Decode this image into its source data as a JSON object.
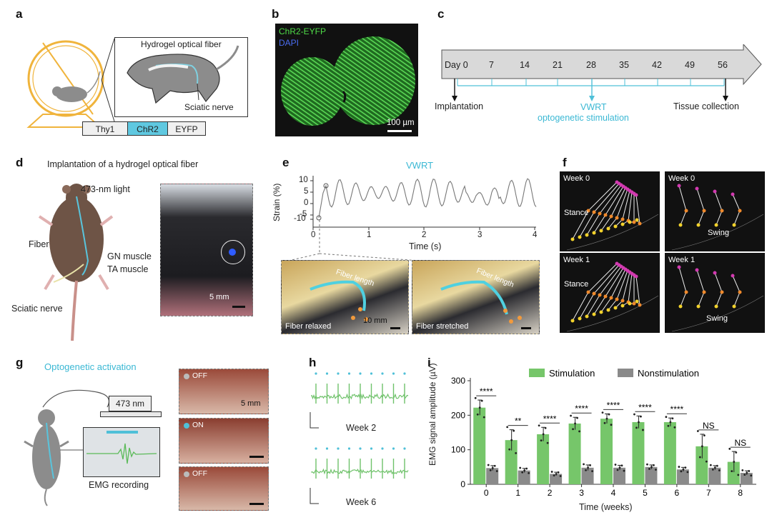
{
  "panels": {
    "a": {
      "label": "a",
      "fiber_label": "Hydrogel optical fiber",
      "nerve_label": "Sciatic nerve",
      "construct": [
        "Thy1",
        "ChR2",
        "EYFP"
      ]
    },
    "b": {
      "label": "b",
      "legend_1": "ChR2-EYFP",
      "legend_2": "DAPI",
      "scalebar": "100 µm"
    },
    "c": {
      "label": "c",
      "ticks": [
        "Day 0",
        "7",
        "14",
        "21",
        "28",
        "35",
        "42",
        "49",
        "56"
      ],
      "implantation": "Implantation",
      "vwrt_1": "VWRT",
      "vwrt_2": "optogenetic stimulation",
      "tissue": "Tissue collection"
    },
    "d": {
      "label": "d",
      "title": "Implantation of a hydrogel optical fiber",
      "light": "473-nm light",
      "fiber": "Fiber",
      "gn": "GN muscle",
      "ta": "TA muscle",
      "nerve": "Sciatic nerve",
      "scalebar": "5 mm"
    },
    "e": {
      "label": "e",
      "title": "VWRT",
      "ylabel": "Strain (%)",
      "xlabel": "Time (s)",
      "yticks": [
        "10",
        "5",
        "0",
        "-5",
        "-10"
      ],
      "xticks": [
        "0",
        "1",
        "2",
        "3",
        "4"
      ],
      "photo1_caption": "Fiber relaxed",
      "photo1_scale": "10 mm",
      "photo2_caption": "Fiber stretched",
      "fiber_length": "Fiber length"
    },
    "f": {
      "label": "f",
      "tiles": [
        {
          "week": "Week 0",
          "phase": "Stance"
        },
        {
          "week": "Week 0",
          "phase": "Swing"
        },
        {
          "week": "Week 1",
          "phase": "Stance"
        },
        {
          "week": "Week 1",
          "phase": "Swing"
        }
      ]
    },
    "g": {
      "label": "g",
      "title": "Optogenetic activation",
      "laser": "473 nm",
      "emg": "EMG recording",
      "states": [
        "OFF",
        "ON",
        "OFF"
      ],
      "scalebar": "5 mm"
    },
    "h": {
      "label": "h",
      "week_a": "Week 2",
      "week_b": "Week 6"
    },
    "i": {
      "label": "i"
    }
  },
  "chart_data": {
    "type": "bar",
    "ylabel": "EMG signal amplitude (µV)",
    "xlabel": "Time (weeks)",
    "ylim": [
      0,
      300
    ],
    "yticks": [
      0,
      100,
      200,
      300
    ],
    "categories": [
      "0",
      "1",
      "2",
      "3",
      "4",
      "5",
      "6",
      "7",
      "8"
    ],
    "series": [
      {
        "name": "Stimulation",
        "color": "#76c66a",
        "values": [
          222,
          128,
          145,
          176,
          190,
          180,
          180,
          110,
          65
        ],
        "errors": [
          22,
          30,
          20,
          18,
          14,
          18,
          12,
          35,
          30
        ]
      },
      {
        "name": "Nonstimulation",
        "color": "#8a8a8a",
        "values": [
          47,
          40,
          30,
          48,
          48,
          50,
          43,
          48,
          33
        ],
        "errors": [
          7,
          6,
          5,
          8,
          7,
          6,
          6,
          6,
          6
        ]
      }
    ],
    "significance": [
      "****",
      "**",
      "****",
      "****",
      "****",
      "****",
      "****",
      "NS",
      "NS"
    ],
    "legend": "top"
  }
}
